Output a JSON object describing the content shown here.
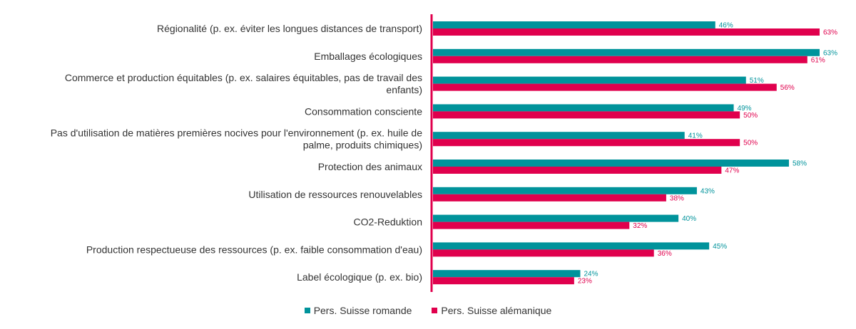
{
  "chart_data": {
    "type": "bar",
    "orientation": "horizontal",
    "categories": [
      [
        "Régionalité (p. ex. éviter les longues distances de transport)"
      ],
      [
        "Emballages écologiques"
      ],
      [
        "Commerce et production équitables (p. ex. salaires équitables, pas de travail des",
        "enfants)"
      ],
      [
        "Consommation consciente"
      ],
      [
        "Pas d'utilisation de matières premières nocives pour l'environnement (p. ex. huile de",
        "palme, produits chimiques)"
      ],
      [
        "Protection des animaux"
      ],
      [
        "Utilisation de ressources renouvelables"
      ],
      [
        "CO2-Reduktion"
      ],
      [
        "Production respectueuse des ressources (p. ex. faible consommation d'eau)"
      ],
      [
        "Label écologique (p. ex. bio)"
      ]
    ],
    "series": [
      {
        "name": "Pers. Suisse romande",
        "color": "#00939b",
        "values": [
          46,
          63,
          51,
          49,
          41,
          58,
          43,
          40,
          45,
          24
        ],
        "labels": [
          "46%",
          "63%",
          "51%",
          "49%",
          "41%",
          "58%",
          "43%",
          "40%",
          "45%",
          "24%"
        ]
      },
      {
        "name": "Pers. Suisse alémanique",
        "color": "#e0004d",
        "values": [
          63,
          61,
          56,
          50,
          50,
          47,
          38,
          32,
          36,
          23
        ],
        "labels": [
          "63%",
          "61%",
          "56%",
          "50%",
          "50%",
          "47%",
          "38%",
          "32%",
          "36%",
          "23%"
        ]
      }
    ],
    "xlim": [
      0,
      63
    ],
    "axis_color": "#e0004d",
    "legend_position": "bottom"
  }
}
